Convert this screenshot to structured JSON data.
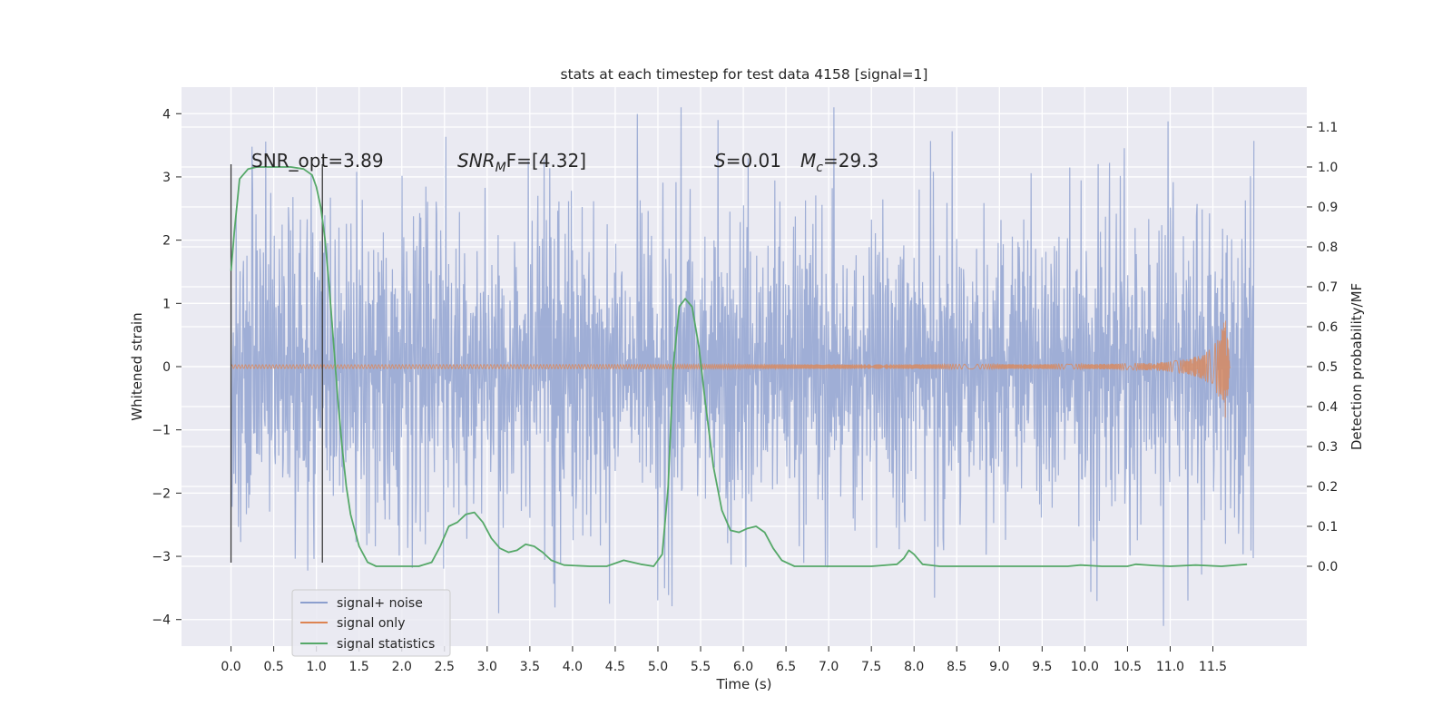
{
  "chart_data": {
    "type": "line",
    "title": "stats at each timestep for test data 4158 [signal=1]",
    "xlabel": "Time (s)",
    "ylabel_left": "Whitened strain",
    "ylabel_right": "Detection probability/MF",
    "xlim": [
      -0.58,
      12.6
    ],
    "ylim_left": [
      -4.42,
      4.42
    ],
    "ylim_right": [
      -0.2,
      1.2
    ],
    "x_ticks": [
      0.0,
      0.5,
      1.0,
      1.5,
      2.0,
      2.5,
      3.0,
      3.5,
      4.0,
      4.5,
      5.0,
      5.5,
      6.0,
      6.5,
      7.0,
      7.5,
      8.0,
      8.5,
      9.0,
      9.5,
      10.0,
      10.5,
      11.0,
      11.5
    ],
    "x_tick_labels": [
      "0.0",
      "0.5",
      "1.0",
      "1.5",
      "2.0",
      "2.5",
      "3.0",
      "3.5",
      "4.0",
      "4.5",
      "5.0",
      "5.5",
      "6.0",
      "6.5",
      "7.0",
      "7.5",
      "8.0",
      "8.5",
      "9.0",
      "9.5",
      "10.0",
      "10.5",
      "11.0",
      "11.5"
    ],
    "y_left_ticks": [
      -4,
      -3,
      -2,
      -1,
      0,
      1,
      2,
      3,
      4
    ],
    "y_left_tick_labels": [
      "−4",
      "−3",
      "−2",
      "−1",
      "0",
      "1",
      "2",
      "3",
      "4"
    ],
    "y_right_ticks": [
      0.0,
      0.1,
      0.2,
      0.3,
      0.4,
      0.5,
      0.6,
      0.7,
      0.8,
      0.9,
      1.0,
      1.1
    ],
    "y_right_tick_labels": [
      "0.0",
      "0.1",
      "0.2",
      "0.3",
      "0.4",
      "0.5",
      "0.6",
      "0.7",
      "0.8",
      "0.9",
      "1.0",
      "1.1"
    ],
    "grid": true,
    "legend_position": "bottom-left",
    "annotations": [
      {
        "text": "SNR_opt=3.89"
      },
      {
        "prefix": "SNR",
        "sub": "M",
        "suffix": "F=[4.32]"
      },
      {
        "prefix": "S",
        "suffix": "=0.01"
      },
      {
        "prefix": "M",
        "sub": "c",
        "suffix": "=29.3"
      }
    ],
    "vertical_markers": [
      {
        "x": 0.0,
        "y_range": [
          -3.1,
          3.2
        ]
      },
      {
        "x": 1.07,
        "y_range": [
          -3.1,
          3.2
        ]
      }
    ],
    "series": [
      {
        "name": "signal+ noise",
        "axis": "left",
        "color": "#8c9fce",
        "x_range": [
          0.0,
          11.98
        ],
        "typical_amplitude": 1.33,
        "min": -3.9,
        "max": 4.1
      },
      {
        "name": "signal only",
        "axis": "left",
        "color": "#dd8452",
        "x": [
          0.0,
          10.0,
          10.5,
          10.8,
          11.0,
          11.2,
          11.35,
          11.45,
          11.52,
          11.57,
          11.62,
          11.66,
          11.7
        ],
        "envelope": [
          0.03,
          0.04,
          0.05,
          0.06,
          0.08,
          0.12,
          0.18,
          0.26,
          0.36,
          0.48,
          0.65,
          0.9,
          0.0
        ]
      },
      {
        "name": "signal statistics",
        "axis": "right",
        "color": "#55a868",
        "x": [
          0.0,
          0.04,
          0.1,
          0.2,
          0.3,
          0.5,
          0.7,
          0.85,
          0.95,
          1.0,
          1.05,
          1.1,
          1.15,
          1.2,
          1.25,
          1.3,
          1.35,
          1.4,
          1.5,
          1.6,
          1.7,
          1.8,
          2.0,
          2.2,
          2.35,
          2.45,
          2.55,
          2.65,
          2.75,
          2.85,
          2.95,
          3.05,
          3.15,
          3.25,
          3.35,
          3.45,
          3.55,
          3.65,
          3.75,
          3.9,
          4.2,
          4.4,
          4.6,
          4.8,
          4.95,
          5.05,
          5.12,
          5.18,
          5.25,
          5.32,
          5.4,
          5.48,
          5.55,
          5.65,
          5.75,
          5.85,
          5.95,
          6.05,
          6.15,
          6.25,
          6.35,
          6.45,
          6.6,
          7.0,
          7.5,
          7.8,
          7.88,
          7.94,
          8.0,
          8.1,
          8.3,
          9.0,
          9.8,
          9.95,
          10.2,
          10.5,
          10.6,
          10.8,
          11.0,
          11.3,
          11.6,
          11.9
        ],
        "y": [
          0.74,
          0.84,
          0.97,
          0.995,
          1.0,
          1.0,
          1.0,
          0.995,
          0.98,
          0.95,
          0.9,
          0.82,
          0.7,
          0.56,
          0.42,
          0.3,
          0.2,
          0.13,
          0.05,
          0.01,
          0.0,
          0.0,
          0.0,
          0.0,
          0.01,
          0.05,
          0.1,
          0.11,
          0.13,
          0.135,
          0.11,
          0.07,
          0.045,
          0.035,
          0.04,
          0.055,
          0.05,
          0.035,
          0.015,
          0.003,
          0.0,
          0.0,
          0.015,
          0.005,
          0.0,
          0.03,
          0.2,
          0.5,
          0.65,
          0.67,
          0.65,
          0.55,
          0.42,
          0.25,
          0.14,
          0.09,
          0.085,
          0.095,
          0.1,
          0.085,
          0.045,
          0.015,
          0.0,
          0.0,
          0.0,
          0.005,
          0.02,
          0.04,
          0.03,
          0.005,
          0.0,
          0.0,
          0.0,
          0.003,
          0.0,
          0.0,
          0.005,
          0.002,
          0.0,
          0.003,
          0.0,
          0.005
        ]
      }
    ]
  }
}
